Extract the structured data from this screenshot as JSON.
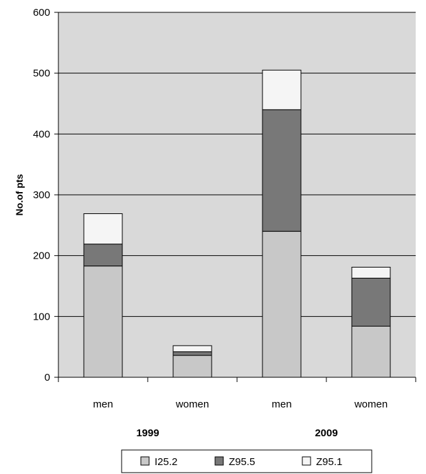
{
  "chart_data": {
    "type": "bar",
    "stacked": true,
    "title": "",
    "ylabel": "No.of pts",
    "xlabel": "",
    "ylim": [
      0,
      600
    ],
    "yticks": [
      0,
      100,
      200,
      300,
      400,
      500,
      600
    ],
    "grid": true,
    "legend_position": "bottom",
    "categories": [
      "men",
      "women",
      "men",
      "women"
    ],
    "groups": [
      {
        "label": "1999",
        "categories": [
          0,
          1
        ]
      },
      {
        "label": "2009",
        "categories": [
          2,
          3
        ]
      }
    ],
    "series": [
      {
        "name": "I25.2",
        "color": "#c8c8c8",
        "values": [
          183,
          36,
          240,
          84
        ]
      },
      {
        "name": "Z95.5",
        "color": "#787878",
        "values": [
          36,
          6,
          200,
          79
        ]
      },
      {
        "name": "Z95.1",
        "color": "#f5f5f5",
        "values": [
          50,
          10,
          65,
          18
        ]
      }
    ],
    "plot_background": "#d9d9d9"
  }
}
